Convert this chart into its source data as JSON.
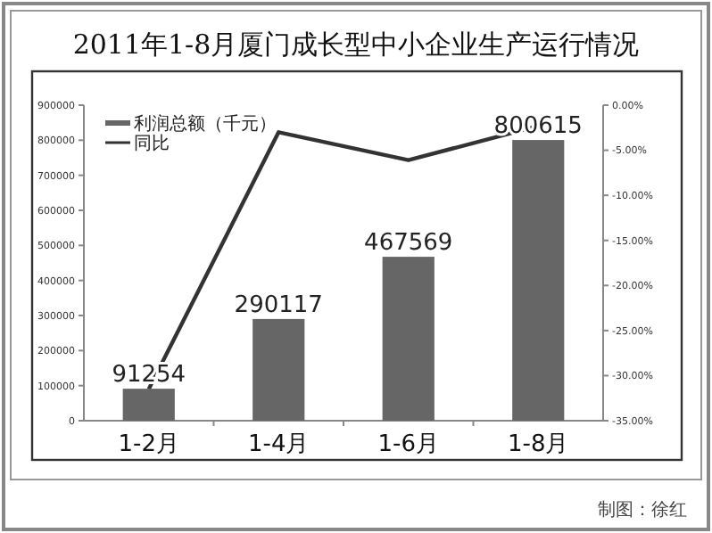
{
  "chart_data": {
    "type": "bar",
    "title": "2011年1-8月厦门成长型中小企业生产运行情况",
    "categories": [
      "1-2月",
      "1-4月",
      "1-6月",
      "1-8月"
    ],
    "series": [
      {
        "name": "利润总额（千元）",
        "color": "#666666",
        "values": [
          91254,
          290117,
          467569,
          800615
        ],
        "value_labels": [
          "91254",
          "290117",
          "467569",
          "800615"
        ]
      },
      {
        "name": "同比",
        "type": "line",
        "axis": "y2",
        "color": "#333333",
        "values": [
          -31.5,
          -3.0,
          -6.1,
          -2.3
        ]
      }
    ],
    "ylim": [
      0,
      900000
    ],
    "yticks": [
      0,
      100000,
      200000,
      300000,
      400000,
      500000,
      600000,
      700000,
      800000,
      900000
    ],
    "y2lim": [
      -35,
      0
    ],
    "y2ticks": [
      {
        "value": 0,
        "label": "0.00%"
      },
      {
        "value": -5,
        "label": "-5.00%"
      },
      {
        "value": -10,
        "label": "-10.00%"
      },
      {
        "value": -15,
        "label": "-15.00%"
      },
      {
        "value": -20,
        "label": "-20.00%"
      },
      {
        "value": -25,
        "label": "-25.00%"
      },
      {
        "value": -30,
        "label": "-30.00%"
      },
      {
        "value": -35,
        "label": "-35.00%"
      }
    ],
    "legend": "top left",
    "grid": false,
    "marker": "none",
    "annotations": [
      "制图：徐红"
    ]
  }
}
